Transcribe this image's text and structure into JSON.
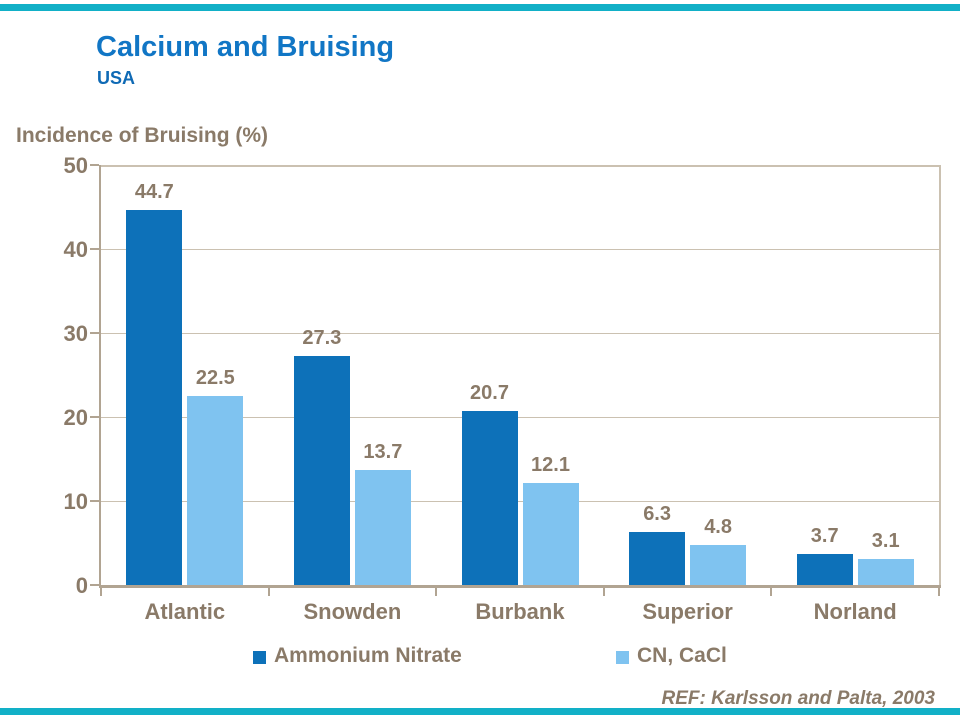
{
  "slide": {
    "title": "Calcium and Bruising",
    "subtitle": "USA",
    "footer_ref": "REF: Karlsson and Palta, 2003"
  },
  "theme": {
    "accent_bar_color": "#12b0c7",
    "title_color": "#1176c5",
    "subtitle_color": "#0f6ab5",
    "text_color": "#8a7a68",
    "grid_color": "#cbc1b1",
    "axis_color": "#b1a492"
  },
  "chart_data": {
    "type": "bar",
    "title": "Incidence of Bruising (%)",
    "ylabel": "Incidence of Bruising (%)",
    "xlabel": "",
    "categories": [
      "Atlantic",
      "Snowden",
      "Burbank",
      "Superior",
      "Norland"
    ],
    "series": [
      {
        "name": "Ammonium Nitrate",
        "color": "#0d71b9",
        "values": [
          44.7,
          27.3,
          20.7,
          6.3,
          3.7
        ]
      },
      {
        "name": "CN, CaCl",
        "color": "#7fc3f0",
        "values": [
          22.5,
          13.7,
          12.1,
          4.8,
          3.1
        ]
      }
    ],
    "ylim": [
      0,
      50
    ],
    "yticks": [
      0,
      10,
      20,
      30,
      40,
      50
    ],
    "grid": true,
    "value_labels": true,
    "legend_position": "bottom"
  }
}
